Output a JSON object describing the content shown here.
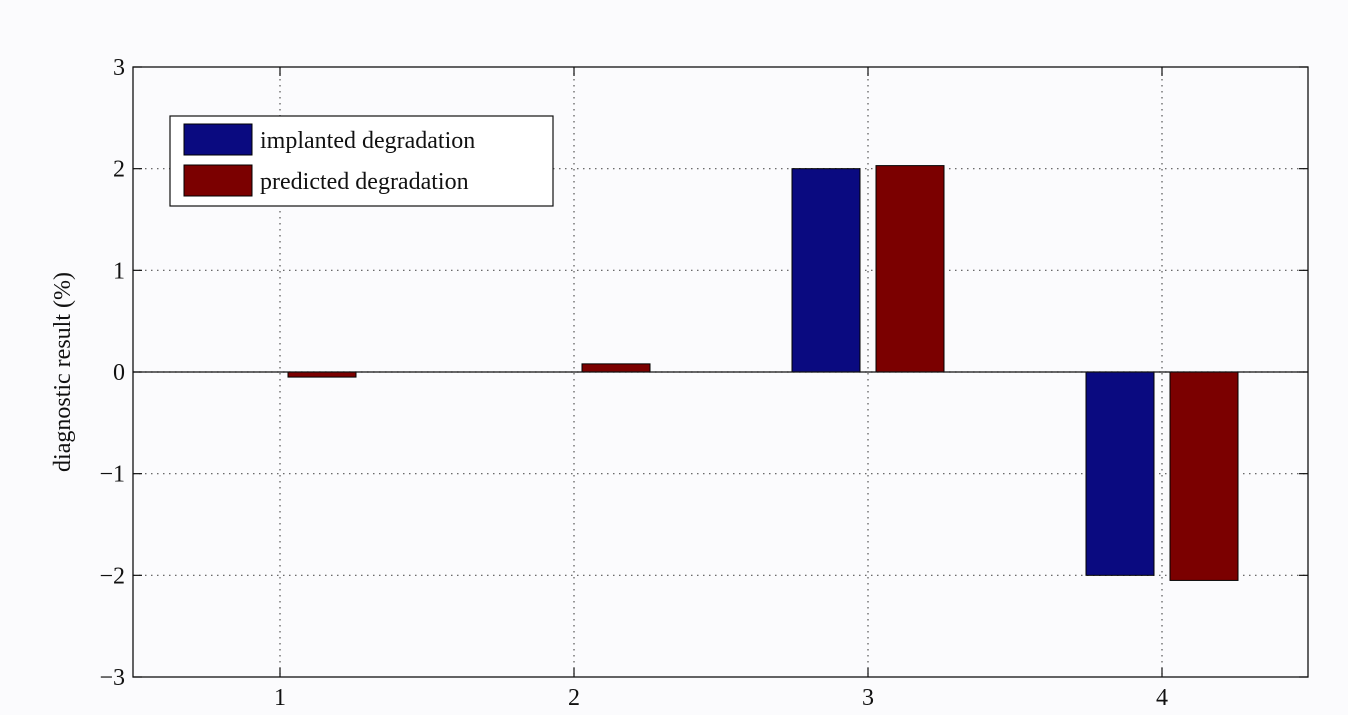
{
  "chart_data": {
    "type": "bar",
    "title": "",
    "xlabel": "",
    "ylabel": "diagnostic result (%)",
    "categories": [
      "1",
      "2",
      "3",
      "4"
    ],
    "series": [
      {
        "name": "implanted degradation",
        "color": "#0a0a80",
        "values": [
          0,
          0,
          2.0,
          -2.0
        ]
      },
      {
        "name": "predicted degradation",
        "color": "#7b0000",
        "values": [
          -0.05,
          0.08,
          2.03,
          -2.05
        ]
      }
    ],
    "ylim": [
      -3,
      3
    ],
    "yticks": [
      -3,
      -2,
      -1,
      0,
      1,
      2,
      3
    ],
    "ytick_labels": [
      "−3",
      "−2",
      "−1",
      "0",
      "1",
      "2",
      "3"
    ],
    "grid": true,
    "legend_position": "top-left"
  }
}
